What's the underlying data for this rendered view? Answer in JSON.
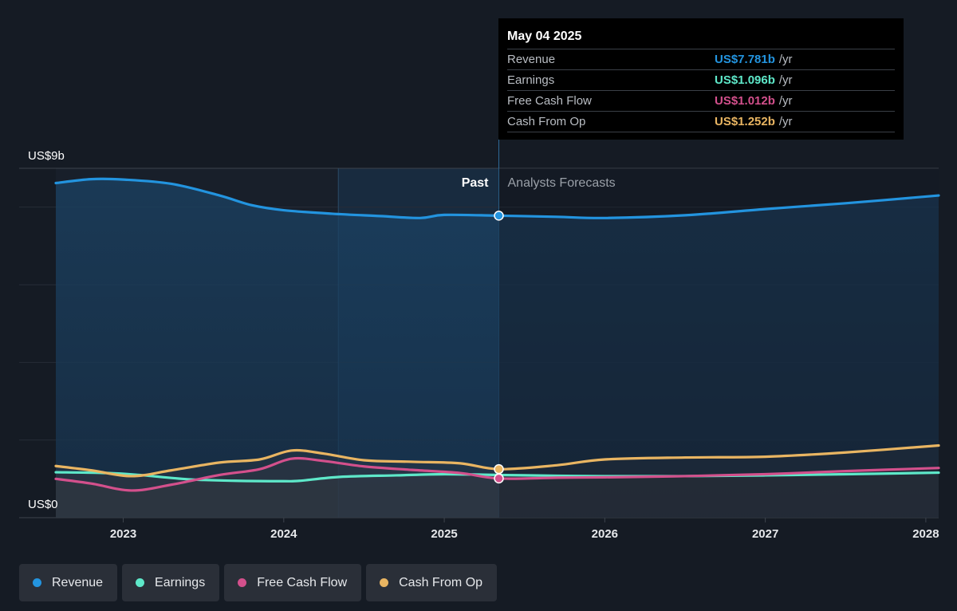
{
  "chart_data": {
    "type": "line",
    "y_axis": {
      "top_label": "US$9b",
      "bottom_label": "US$0",
      "ylim": [
        0,
        9
      ]
    },
    "x_axis": {
      "ticks": [
        "2023",
        "2024",
        "2025",
        "2026",
        "2027",
        "2028"
      ],
      "xlim": [
        2022.58,
        2028.08
      ]
    },
    "regions": {
      "past_label": "Past",
      "forecast_label": "Analysts Forecasts",
      "divider_x": 2025.34
    },
    "series": [
      {
        "name": "Revenue",
        "color": "#2394df",
        "points": [
          [
            2022.58,
            8.62
          ],
          [
            2022.8,
            8.72
          ],
          [
            2023.0,
            8.71
          ],
          [
            2023.3,
            8.6
          ],
          [
            2023.6,
            8.3
          ],
          [
            2023.8,
            8.05
          ],
          [
            2024.0,
            7.92
          ],
          [
            2024.3,
            7.83
          ],
          [
            2024.6,
            7.77
          ],
          [
            2024.85,
            7.72
          ],
          [
            2025.0,
            7.8
          ],
          [
            2025.34,
            7.78
          ],
          [
            2025.7,
            7.75
          ],
          [
            2026.0,
            7.72
          ],
          [
            2026.5,
            7.79
          ],
          [
            2027.0,
            7.95
          ],
          [
            2027.5,
            8.1
          ],
          [
            2028.08,
            8.3
          ]
        ]
      },
      {
        "name": "Earnings",
        "color": "#5ee8c9",
        "points": [
          [
            2022.58,
            1.17
          ],
          [
            2022.9,
            1.15
          ],
          [
            2023.1,
            1.1
          ],
          [
            2023.4,
            0.99
          ],
          [
            2023.7,
            0.95
          ],
          [
            2024.0,
            0.94
          ],
          [
            2024.1,
            0.95
          ],
          [
            2024.35,
            1.05
          ],
          [
            2024.7,
            1.09
          ],
          [
            2025.0,
            1.12
          ],
          [
            2025.34,
            1.1
          ],
          [
            2025.7,
            1.08
          ],
          [
            2026.0,
            1.07
          ],
          [
            2026.5,
            1.07
          ],
          [
            2027.0,
            1.09
          ],
          [
            2027.5,
            1.12
          ],
          [
            2028.08,
            1.16
          ]
        ]
      },
      {
        "name": "Free Cash Flow",
        "color": "#d3508c",
        "points": [
          [
            2022.58,
            1.0
          ],
          [
            2022.8,
            0.88
          ],
          [
            2023.05,
            0.7
          ],
          [
            2023.3,
            0.85
          ],
          [
            2023.6,
            1.1
          ],
          [
            2023.85,
            1.25
          ],
          [
            2024.05,
            1.52
          ],
          [
            2024.25,
            1.46
          ],
          [
            2024.5,
            1.32
          ],
          [
            2024.8,
            1.23
          ],
          [
            2025.1,
            1.15
          ],
          [
            2025.34,
            1.01
          ],
          [
            2025.7,
            1.03
          ],
          [
            2026.0,
            1.04
          ],
          [
            2026.5,
            1.07
          ],
          [
            2027.0,
            1.12
          ],
          [
            2027.5,
            1.2
          ],
          [
            2028.08,
            1.28
          ]
        ]
      },
      {
        "name": "Cash From Op",
        "color": "#e9b562",
        "points": [
          [
            2022.58,
            1.33
          ],
          [
            2022.8,
            1.22
          ],
          [
            2023.05,
            1.07
          ],
          [
            2023.3,
            1.22
          ],
          [
            2023.6,
            1.42
          ],
          [
            2023.85,
            1.5
          ],
          [
            2024.05,
            1.73
          ],
          [
            2024.25,
            1.65
          ],
          [
            2024.5,
            1.48
          ],
          [
            2024.8,
            1.44
          ],
          [
            2025.1,
            1.4
          ],
          [
            2025.34,
            1.25
          ],
          [
            2025.7,
            1.35
          ],
          [
            2026.0,
            1.5
          ],
          [
            2026.5,
            1.55
          ],
          [
            2027.0,
            1.57
          ],
          [
            2027.5,
            1.68
          ],
          [
            2028.08,
            1.86
          ]
        ]
      }
    ]
  },
  "tooltip": {
    "date": "May 04 2025",
    "rows": [
      {
        "label": "Revenue",
        "value": "US$7.781b",
        "unit": "/yr",
        "color": "#2394df"
      },
      {
        "label": "Earnings",
        "value": "US$1.096b",
        "unit": "/yr",
        "color": "#5ee8c9"
      },
      {
        "label": "Free Cash Flow",
        "value": "US$1.012b",
        "unit": "/yr",
        "color": "#d3508c"
      },
      {
        "label": "Cash From Op",
        "value": "US$1.252b",
        "unit": "/yr",
        "color": "#e9b562"
      }
    ]
  },
  "legend": [
    {
      "label": "Revenue",
      "color": "#2394df"
    },
    {
      "label": "Earnings",
      "color": "#5ee8c9"
    },
    {
      "label": "Free Cash Flow",
      "color": "#d3508c"
    },
    {
      "label": "Cash From Op",
      "color": "#e9b562"
    }
  ]
}
